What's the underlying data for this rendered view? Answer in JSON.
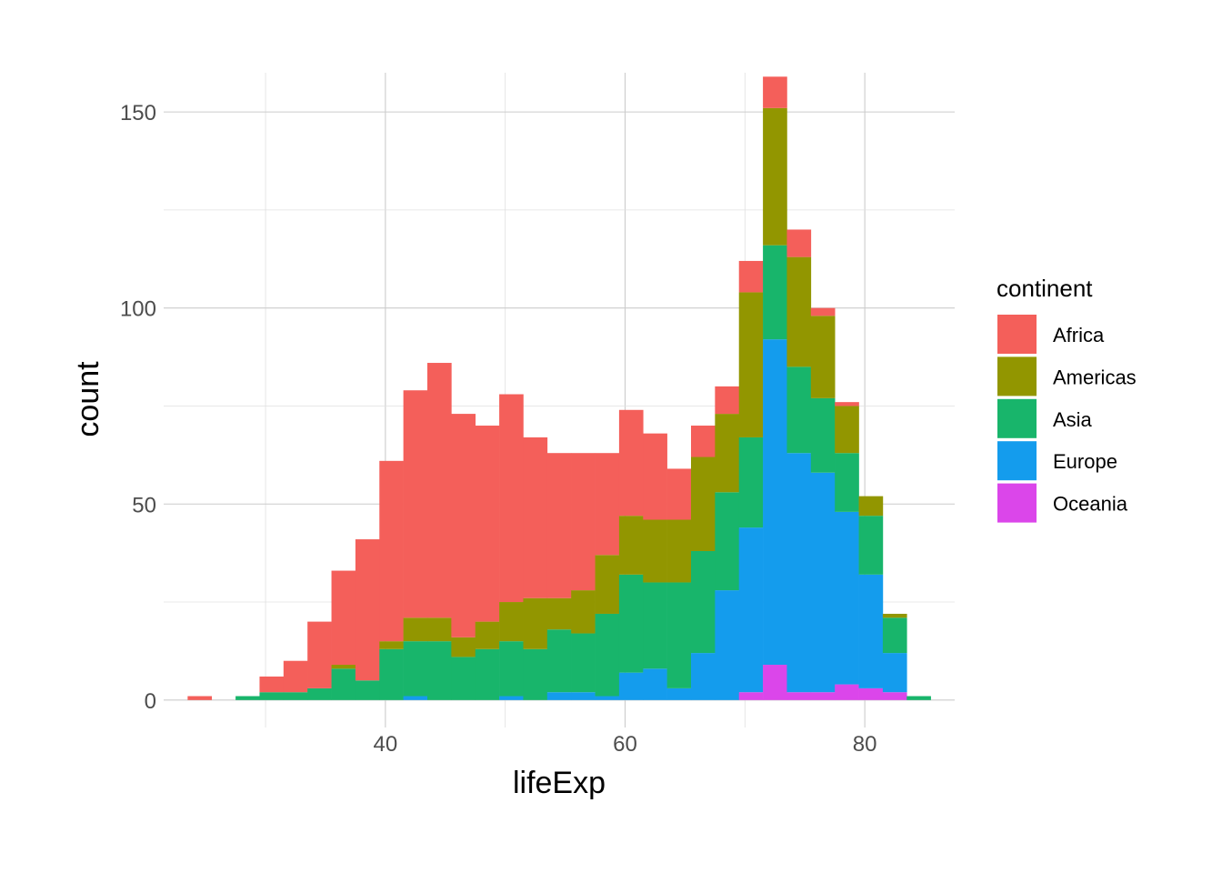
{
  "chart_data": {
    "type": "bar",
    "stacked": true,
    "xlabel": "lifeExp",
    "ylabel": "count",
    "xlim": [
      21.5,
      87.5
    ],
    "ylim": [
      -7,
      160
    ],
    "x_ticks": [
      40,
      60,
      80
    ],
    "y_ticks": [
      0,
      50,
      100,
      150
    ],
    "grid": true,
    "bin_start": 23.5,
    "bin_width": 2,
    "legend": {
      "title": "continent",
      "placement": "right"
    },
    "series": [
      {
        "name": "Europe",
        "color": "#149CED",
        "values": [
          0,
          0,
          0,
          0,
          0,
          0,
          0,
          0,
          0,
          1,
          0,
          0,
          0,
          1,
          0,
          2,
          2,
          1,
          7,
          8,
          3,
          12,
          28,
          42,
          83,
          61,
          56,
          44,
          29,
          10,
          0
        ]
      },
      {
        "name": "Oceania",
        "color": "#DB46EA",
        "values": [
          0,
          0,
          0,
          0,
          0,
          0,
          0,
          0,
          0,
          0,
          0,
          0,
          0,
          0,
          0,
          0,
          0,
          0,
          0,
          0,
          0,
          0,
          0,
          2,
          9,
          2,
          2,
          4,
          3,
          2,
          0
        ]
      },
      {
        "name": "Asia",
        "color": "#18B56B",
        "values": [
          0,
          0,
          1,
          2,
          2,
          3,
          8,
          5,
          13,
          14,
          15,
          11,
          13,
          14,
          13,
          16,
          15,
          21,
          25,
          22,
          27,
          26,
          25,
          23,
          24,
          22,
          19,
          15,
          15,
          9,
          1
        ]
      },
      {
        "name": "Americas",
        "color": "#929600",
        "values": [
          0,
          0,
          0,
          0,
          0,
          0,
          1,
          0,
          2,
          6,
          6,
          5,
          7,
          10,
          13,
          8,
          11,
          15,
          15,
          16,
          16,
          24,
          20,
          37,
          35,
          28,
          21,
          12,
          5,
          1,
          0
        ]
      },
      {
        "name": "Africa",
        "color": "#F45F5A",
        "values": [
          1,
          0,
          0,
          4,
          8,
          17,
          24,
          36,
          46,
          58,
          65,
          57,
          50,
          53,
          41,
          37,
          35,
          26,
          27,
          22,
          13,
          8,
          7,
          8,
          8,
          7,
          2,
          1,
          0,
          0,
          0
        ]
      }
    ]
  }
}
